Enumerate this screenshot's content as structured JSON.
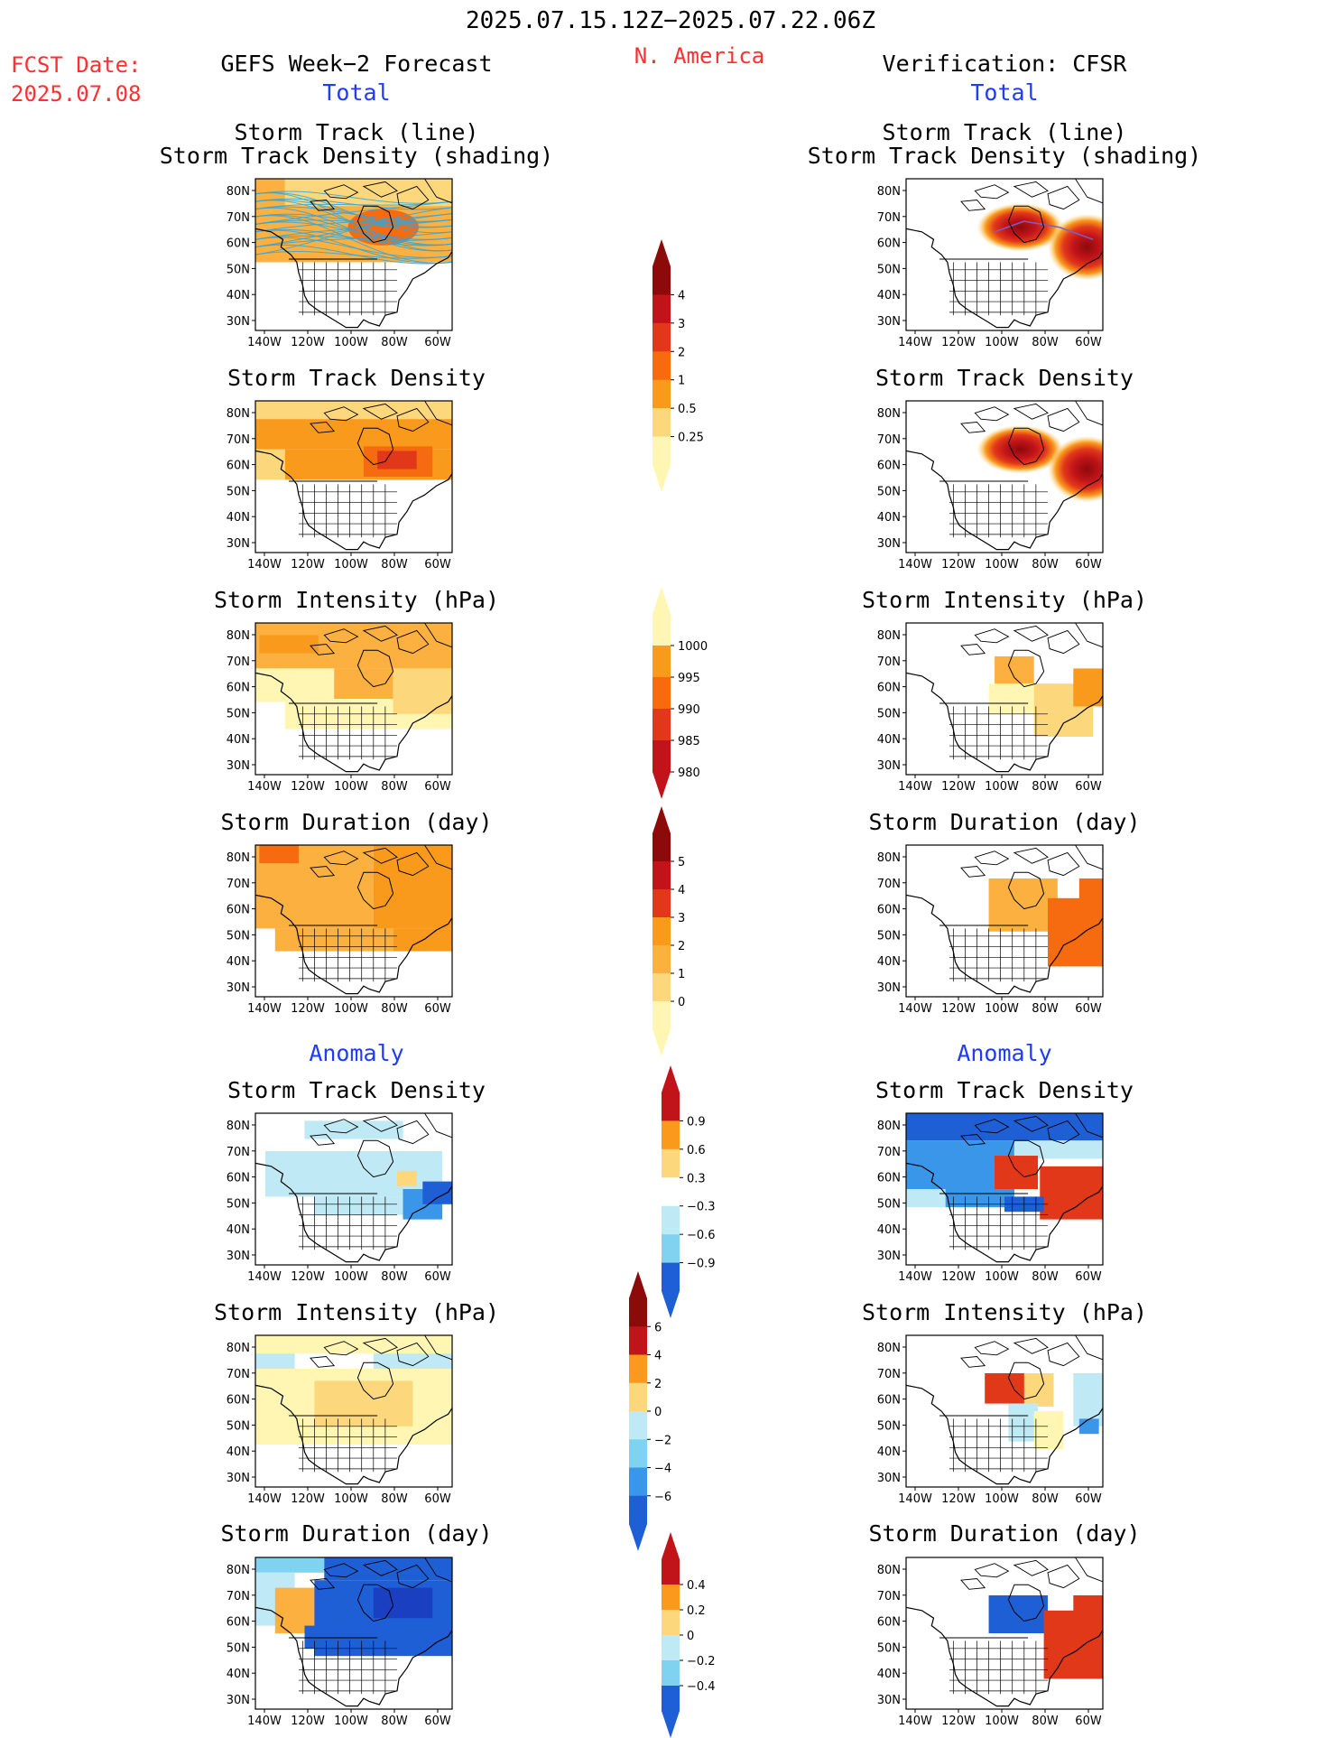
{
  "header": {
    "period": "2025.07.15.12Z−2025.07.22.06Z",
    "region": "N. America",
    "fcst_date_label": "FCST Date:",
    "fcst_date": "2025.07.08",
    "left_title": "GEFS Week−2 Forecast",
    "right_title": "Verification: CFSR",
    "total_label": "Total",
    "anomaly_label": "Anomaly"
  },
  "axes": {
    "lat_labels": [
      "80N",
      "70N",
      "60N",
      "50N",
      "40N",
      "30N"
    ],
    "lon_labels": [
      "140W",
      "120W",
      "100W",
      "80W",
      "60W"
    ]
  },
  "panel_titles": {
    "track_line": "Storm Track (line)",
    "track_shading": "Storm Track Density (shading)",
    "density": "Storm Track Density",
    "intensity": "Storm Intensity (hPa)",
    "duration": "Storm Duration (day)"
  },
  "colorbars": {
    "density_total": [
      "4",
      "3",
      "2",
      "1",
      "0.5",
      "0.25"
    ],
    "intensity_total": [
      "1000",
      "995",
      "990",
      "985",
      "980"
    ],
    "duration_total": [
      "5",
      "4",
      "3",
      "2",
      "1",
      "0"
    ],
    "density_anom": [
      "0.9",
      "0.6",
      "0.3",
      "−0.3",
      "−0.6",
      "−0.9"
    ],
    "intensity_anom": [
      "6",
      "4",
      "2",
      "0",
      "−2",
      "−4",
      "−6"
    ],
    "duration_anom": [
      "0.4",
      "0.2",
      "0",
      "−0.2",
      "−0.4"
    ]
  },
  "colors": {
    "warm": [
      "#fff6b4",
      "#fcd77c",
      "#fbb040",
      "#f99a1c",
      "#f66b10",
      "#e2381a",
      "#c1141a",
      "#8c0a0a"
    ],
    "cool": [
      "#bfeaf5",
      "#7fd3f0",
      "#3a96e8",
      "#1e5fd6",
      "#1a3fc0"
    ],
    "accent_red": "#ff3030",
    "accent_blue": "#1e3cff"
  }
}
